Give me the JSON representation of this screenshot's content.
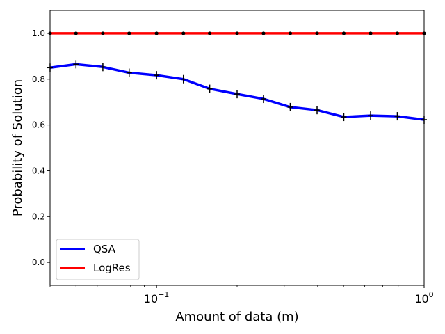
{
  "chart_data": {
    "type": "line",
    "xlabel": "Amount of data (m)",
    "ylabel": "Probability of Solution",
    "xscale": "log",
    "xlim": [
      0.04,
      1.0
    ],
    "ylim": [
      -0.1,
      1.1
    ],
    "yticks": [
      0.0,
      0.2,
      0.4,
      0.6,
      0.8,
      1.0
    ],
    "ytick_labels": [
      "0.0",
      "0.2",
      "0.4",
      "0.6",
      "0.8",
      "1.0"
    ],
    "xticks": [
      0.1,
      1.0
    ],
    "xtick_labels": [
      {
        "base": "10",
        "exp": "−1"
      },
      {
        "base": "10",
        "exp": "0"
      }
    ],
    "grid": false,
    "legend_position": "lower-left",
    "x": [
      0.04,
      0.05,
      0.063,
      0.079,
      0.1,
      0.126,
      0.158,
      0.2,
      0.251,
      0.316,
      0.398,
      0.501,
      0.631,
      0.794,
      1.0
    ],
    "series": [
      {
        "name": "QSA",
        "color": "#0000ff",
        "marker": "errorbar",
        "values": [
          0.85,
          0.865,
          0.853,
          0.828,
          0.817,
          0.8,
          0.758,
          0.735,
          0.714,
          0.678,
          0.665,
          0.635,
          0.641,
          0.638,
          0.623
        ]
      },
      {
        "name": "LogRes",
        "color": "#ff0000",
        "marker": "dot",
        "values": [
          1.0,
          1.0,
          1.0,
          1.0,
          1.0,
          1.0,
          1.0,
          1.0,
          1.0,
          1.0,
          1.0,
          1.0,
          1.0,
          1.0,
          1.0
        ]
      }
    ]
  }
}
